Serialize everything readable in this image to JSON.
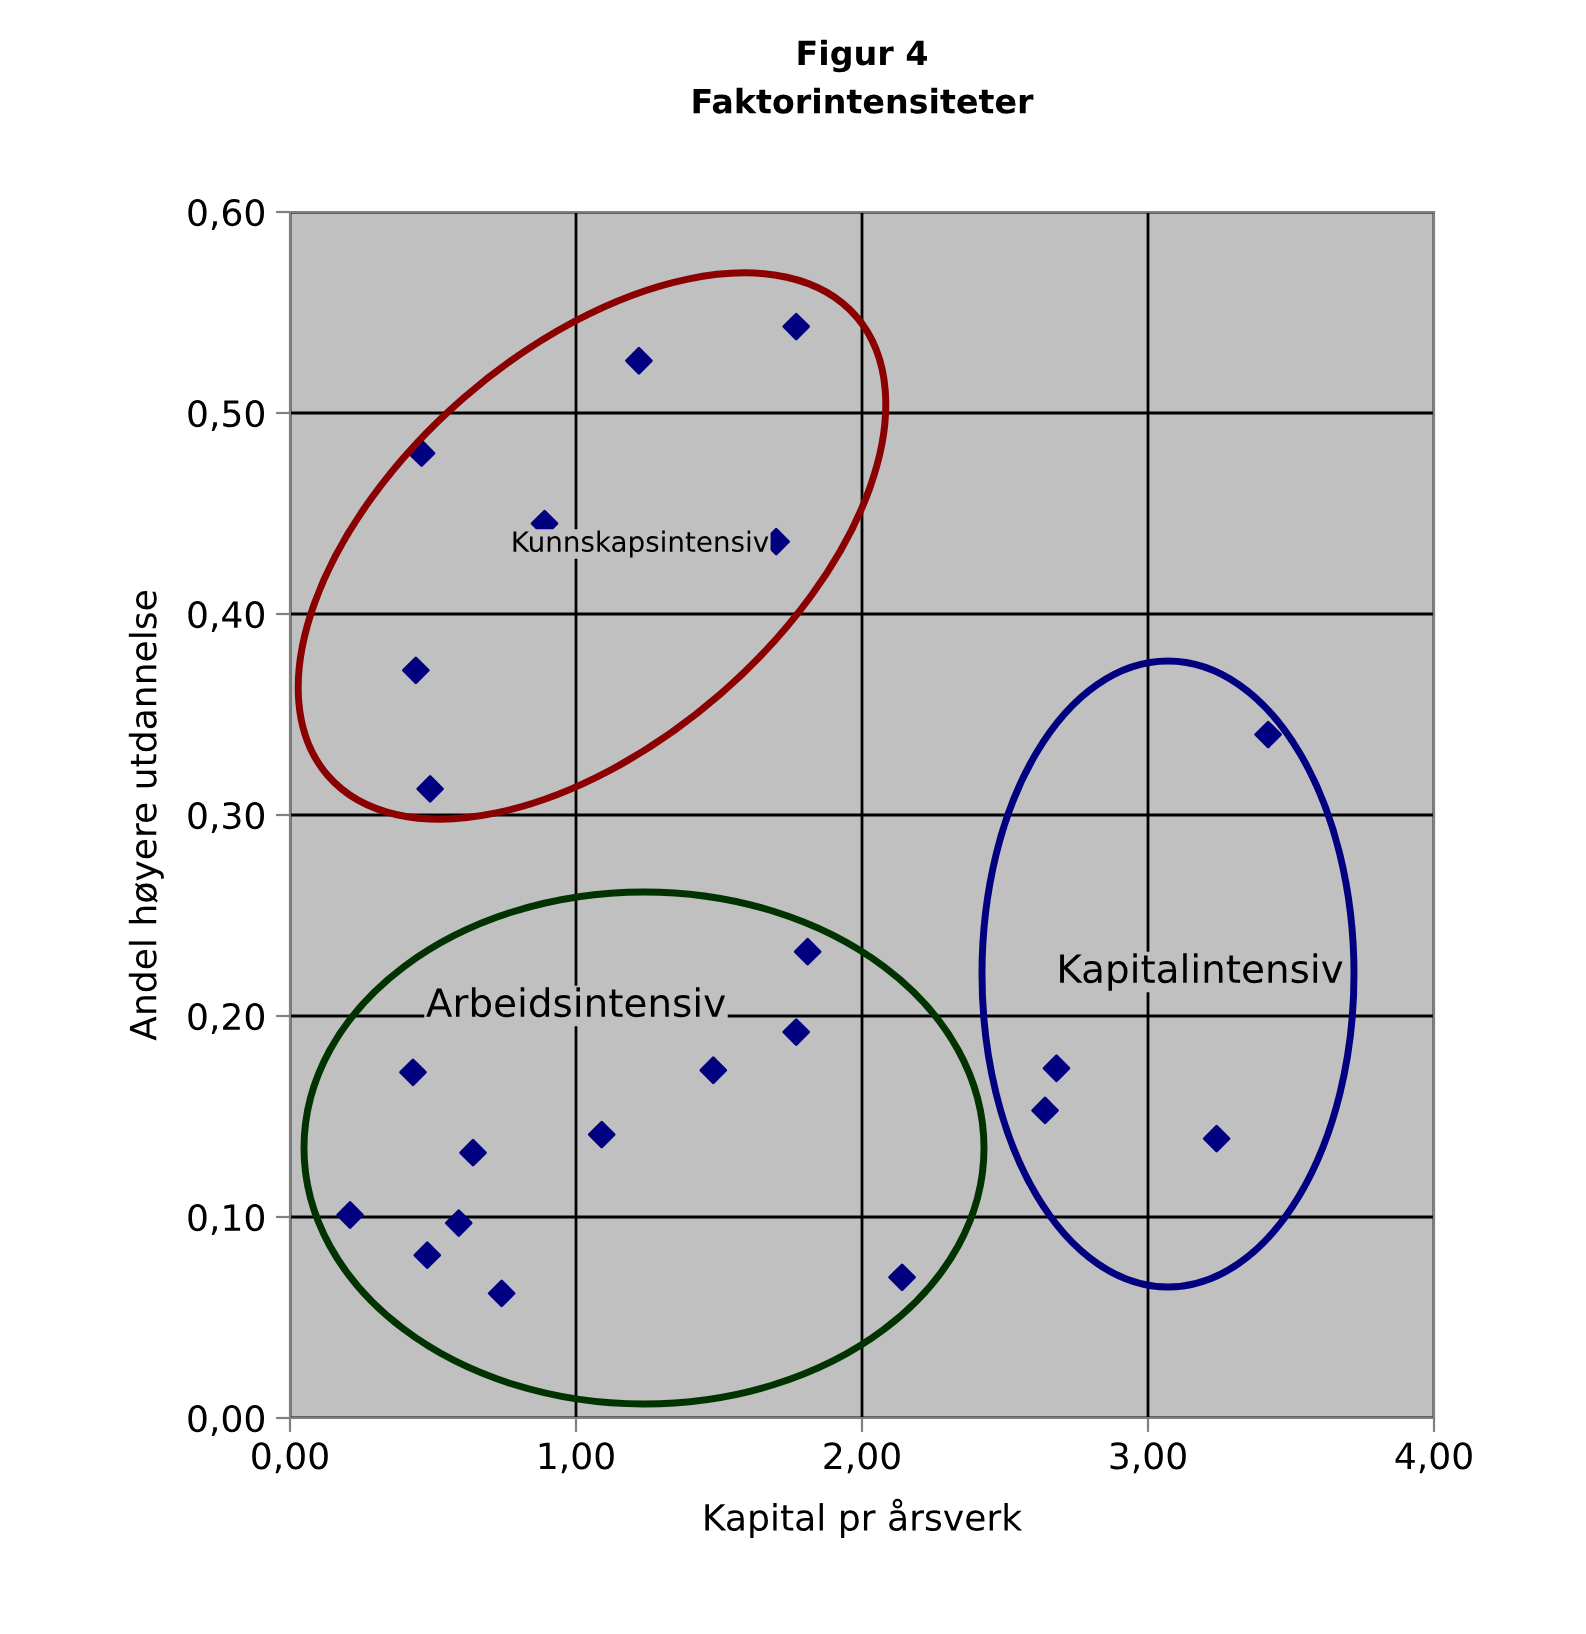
{
  "chart_data": {
    "type": "scatter",
    "title": "Figur 4",
    "subtitle": "Faktorintensiteter",
    "xlabel": "Kapital pr årsverk",
    "ylabel": "Andel høyere utdannelse",
    "xlim": [
      0,
      4
    ],
    "ylim": [
      0,
      0.6
    ],
    "xticks": [
      {
        "value": 0,
        "label": "0,00"
      },
      {
        "value": 1,
        "label": "1,00"
      },
      {
        "value": 2,
        "label": "2,00"
      },
      {
        "value": 3,
        "label": "3,00"
      },
      {
        "value": 4,
        "label": "4,00"
      }
    ],
    "yticks": [
      {
        "value": 0,
        "label": "0,00"
      },
      {
        "value": 0.1,
        "label": "0,10"
      },
      {
        "value": 0.2,
        "label": "0,20"
      },
      {
        "value": 0.3,
        "label": "0,30"
      },
      {
        "value": 0.4,
        "label": "0,40"
      },
      {
        "value": 0.5,
        "label": "0,50"
      },
      {
        "value": 0.6,
        "label": "0,60"
      }
    ],
    "grid": true,
    "marker": "diamond",
    "legend": false,
    "series": [
      {
        "color": "#000080",
        "x": [
          1.77,
          1.22,
          0.46,
          0.89,
          1.7,
          0.44,
          0.49,
          1.81,
          1.77,
          1.48,
          0.43,
          1.09,
          0.64,
          0.21,
          0.59,
          0.48,
          0.74,
          2.14,
          3.42,
          2.68,
          2.64,
          3.24
        ],
        "values": [
          0.543,
          0.526,
          0.48,
          0.445,
          0.436,
          0.372,
          0.313,
          0.232,
          0.192,
          0.173,
          0.172,
          0.141,
          0.132,
          0.101,
          0.097,
          0.081,
          0.062,
          0.07,
          0.34,
          0.174,
          0.153,
          0.139
        ]
      }
    ],
    "annotations": [
      "Kunnskapsintensiv",
      "Arbeidsintensiv",
      "Kapitalintensiv"
    ]
  }
}
